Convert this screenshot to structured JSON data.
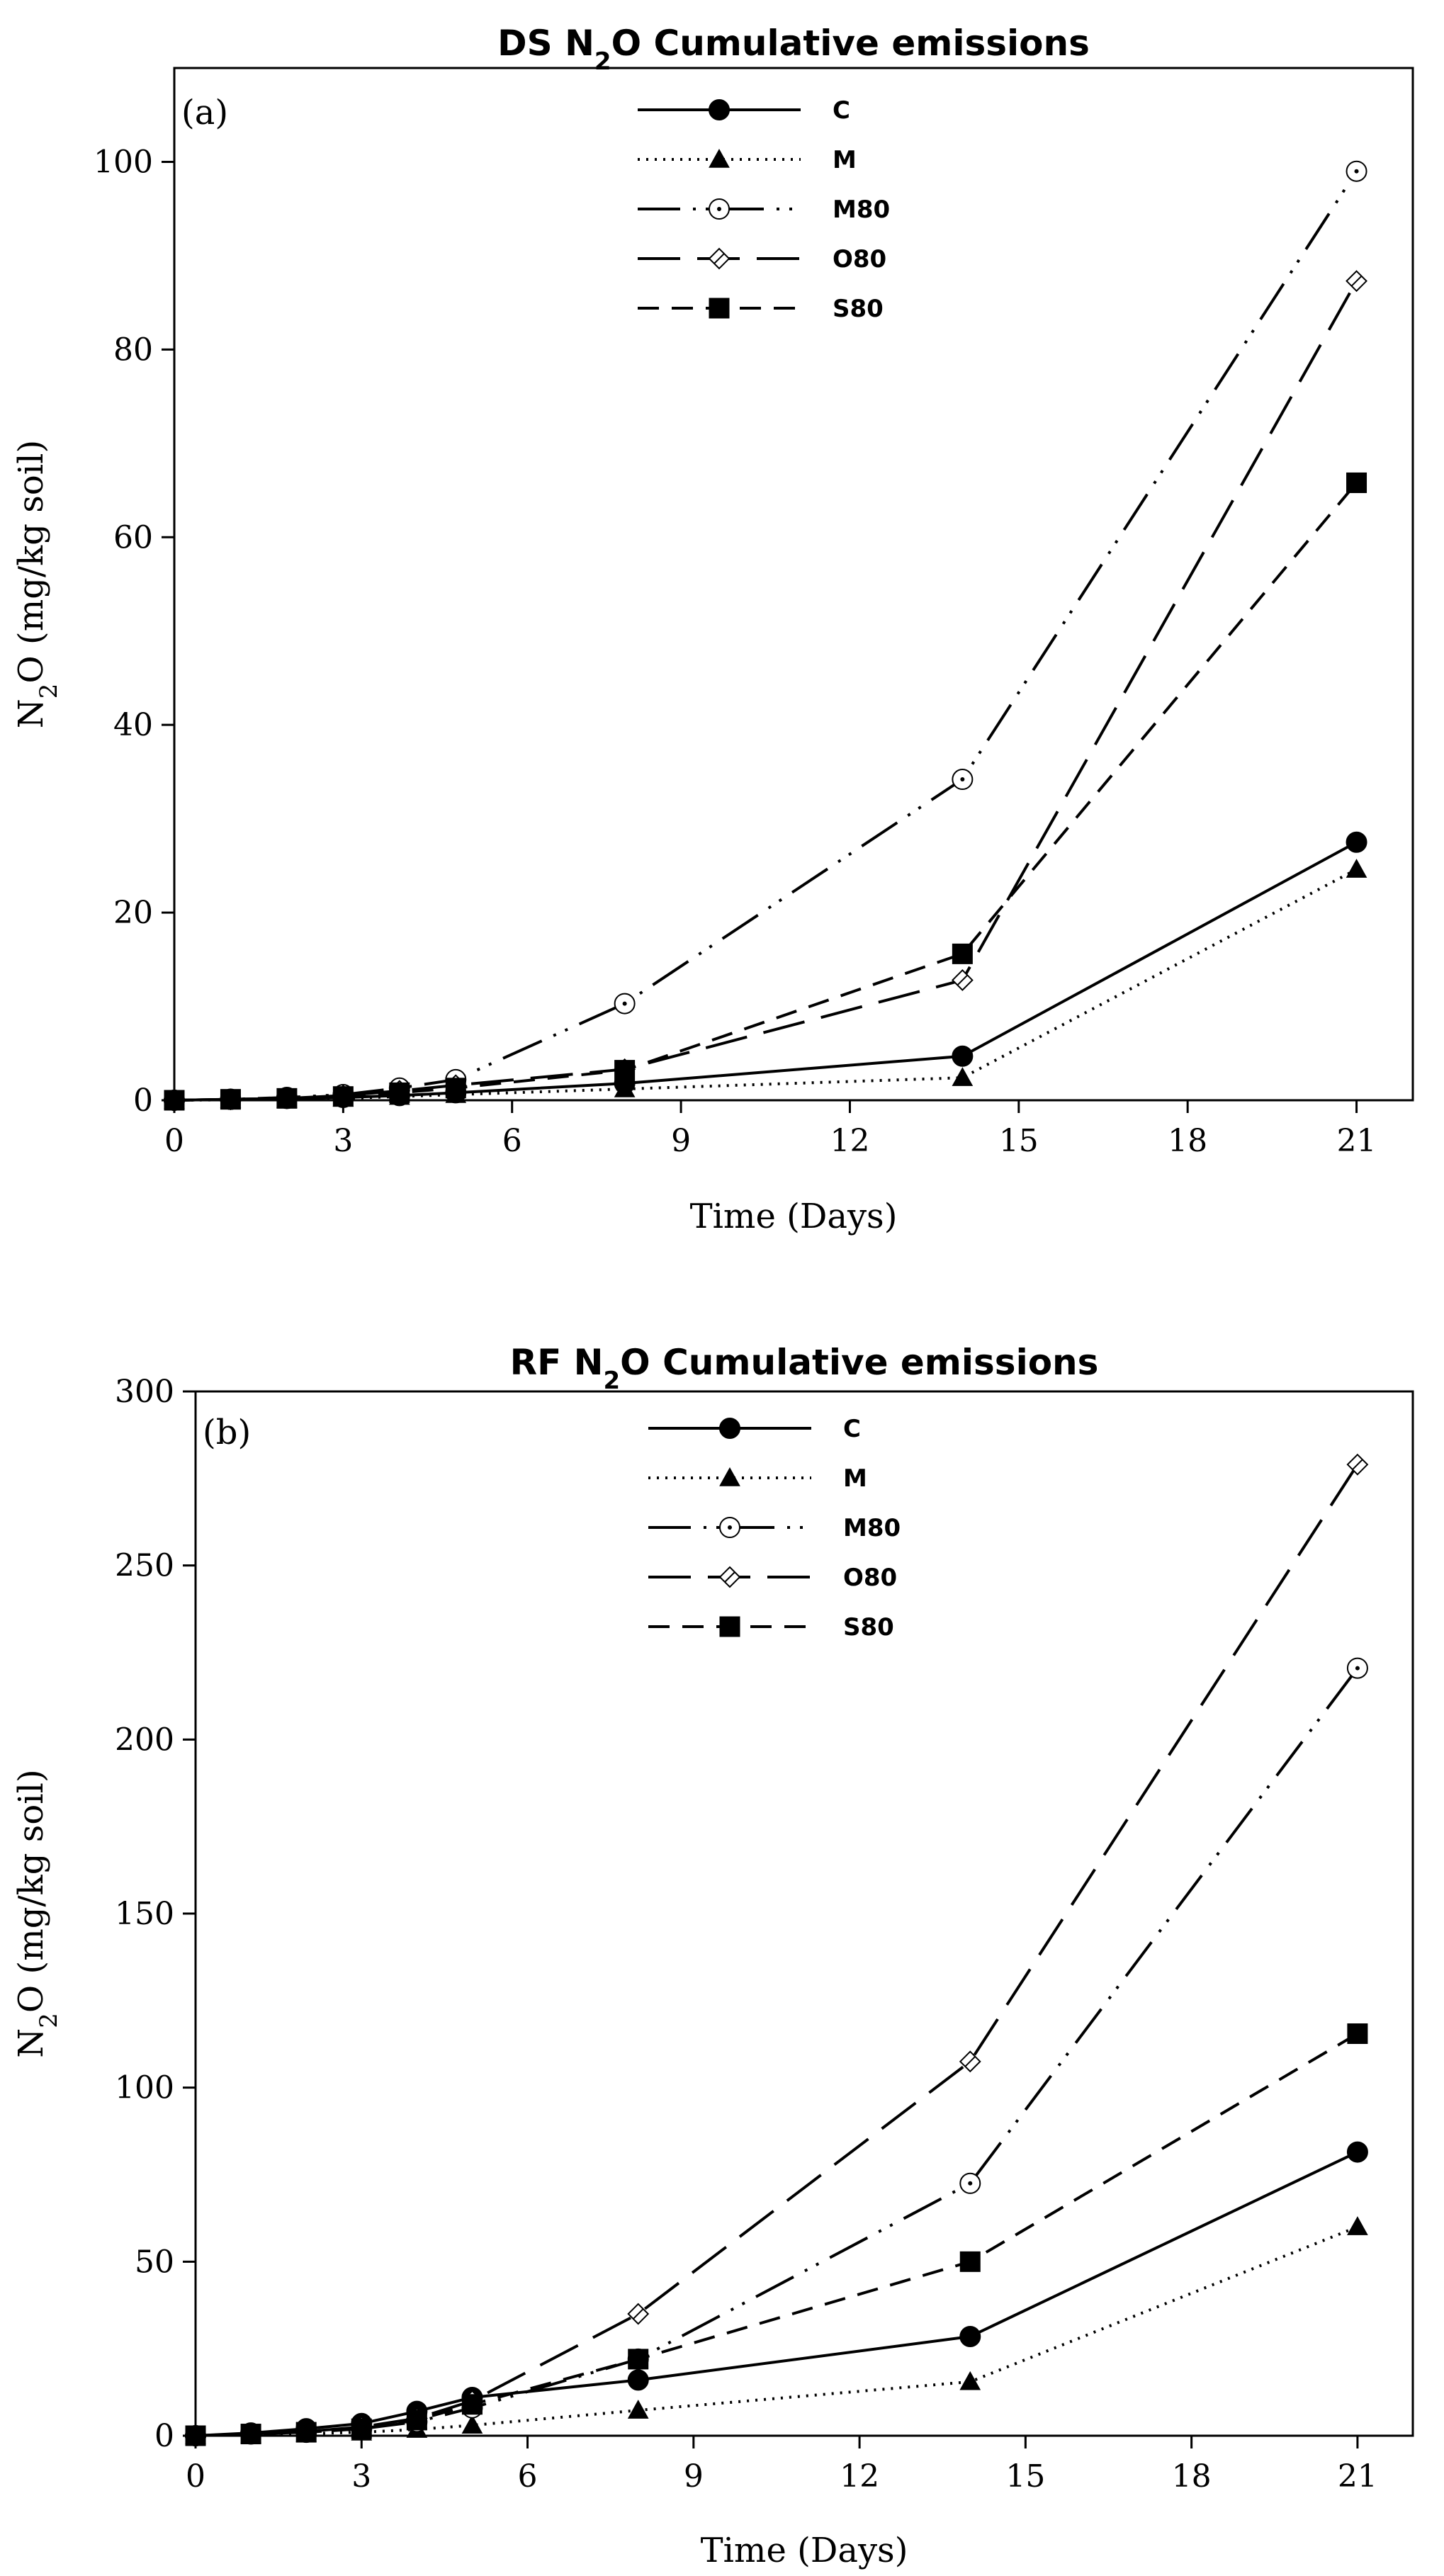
{
  "chart_data": [
    {
      "type": "line",
      "panel": "(a)",
      "title": "DS N2O Cumulative emissions",
      "title_parts": {
        "prefix": "DS N",
        "sub": "2",
        "suffix": "O Cumulative emissions"
      },
      "xlabel": "Time (Days)",
      "ylabel_parts": {
        "prefix": "N",
        "sub": "2",
        "suffix": "O (mg/kg soil)"
      },
      "xlim": [
        0,
        22
      ],
      "ylim": [
        0,
        110
      ],
      "xticks": [
        0,
        3,
        6,
        9,
        12,
        15,
        18,
        21
      ],
      "yticks": [
        0,
        20,
        40,
        60,
        80,
        100
      ],
      "grid": false,
      "legend_position": "top-center",
      "series": [
        {
          "name": "C",
          "x": [
            0,
            1,
            2,
            3,
            4,
            5,
            8,
            14,
            21
          ],
          "y": [
            0,
            0.1,
            0.2,
            0.3,
            0.5,
            0.8,
            1.8,
            4.7,
            27.5
          ]
        },
        {
          "name": "M",
          "x": [
            0,
            1,
            2,
            3,
            4,
            5,
            8,
            14,
            21
          ],
          "y": [
            0,
            0.05,
            0.1,
            0.2,
            0.4,
            0.6,
            1.2,
            2.4,
            24.6
          ]
        },
        {
          "name": "M80",
          "x": [
            0,
            1,
            2,
            3,
            4,
            5,
            8,
            14,
            21
          ],
          "y": [
            0,
            0.1,
            0.3,
            0.6,
            1.3,
            2.2,
            10.3,
            34.2,
            99.0
          ]
        },
        {
          "name": "O80",
          "x": [
            0,
            1,
            2,
            3,
            4,
            5,
            8,
            14,
            21
          ],
          "y": [
            0,
            0.1,
            0.2,
            0.5,
            1.0,
            1.6,
            3.3,
            12.8,
            87.3
          ]
        },
        {
          "name": "S80",
          "x": [
            0,
            1,
            2,
            3,
            4,
            5,
            8,
            14,
            21
          ],
          "y": [
            0,
            0.1,
            0.2,
            0.4,
            0.8,
            1.3,
            3.2,
            15.6,
            65.8
          ]
        }
      ]
    },
    {
      "type": "line",
      "panel": "(b)",
      "title": "RF N2O Cumulative emissions",
      "title_parts": {
        "prefix": "RF N",
        "sub": "2",
        "suffix": "O Cumulative emissions"
      },
      "xlabel": "Time (Days)",
      "ylabel_parts": {
        "prefix": "N",
        "sub": "2",
        "suffix": "O (mg/kg soil)"
      },
      "xlim": [
        0,
        22
      ],
      "ylim": [
        0,
        300
      ],
      "xticks": [
        0,
        3,
        6,
        9,
        12,
        15,
        18,
        21
      ],
      "yticks": [
        0,
        50,
        100,
        150,
        200,
        250,
        300
      ],
      "grid": false,
      "legend_position": "top-center",
      "series": [
        {
          "name": "C",
          "x": [
            0,
            1,
            2,
            3,
            4,
            5,
            8,
            14,
            21
          ],
          "y": [
            0,
            0.8,
            2.0,
            3.5,
            7.0,
            11.0,
            16.0,
            28.5,
            81.5
          ]
        },
        {
          "name": "M",
          "x": [
            0,
            1,
            2,
            3,
            4,
            5,
            8,
            14,
            21
          ],
          "y": [
            0,
            0.3,
            0.6,
            1.0,
            1.8,
            3.0,
            7.3,
            15.5,
            60.0
          ]
        },
        {
          "name": "M80",
          "x": [
            0,
            1,
            2,
            3,
            4,
            5,
            8,
            14,
            21
          ],
          "y": [
            0,
            0.5,
            1.0,
            2.0,
            4.0,
            8.0,
            22.0,
            72.5,
            220.5
          ]
        },
        {
          "name": "O80",
          "x": [
            0,
            1,
            2,
            3,
            4,
            5,
            8,
            14,
            21
          ],
          "y": [
            0,
            0.6,
            1.2,
            2.5,
            5.0,
            10.0,
            35.0,
            107.5,
            279.0
          ]
        },
        {
          "name": "S80",
          "x": [
            0,
            1,
            2,
            3,
            4,
            5,
            8,
            14,
            21
          ],
          "y": [
            0,
            0.5,
            1.0,
            2.0,
            4.5,
            9.0,
            22.0,
            50.0,
            115.5
          ]
        }
      ]
    }
  ],
  "series_style": {
    "C": {
      "dash": "none",
      "marker": "circle-filled"
    },
    "M": {
      "dash": "3 9",
      "marker": "triangle-filled"
    },
    "M80": {
      "dash": "60 18 4 14 4 18",
      "marker": "circle-open-dot"
    },
    "O80": {
      "dash": "60 24",
      "marker": "diamond-open"
    },
    "S80": {
      "dash": "30 18",
      "marker": "square-filled"
    }
  },
  "colors": {
    "line": "#000000",
    "background": "#ffffff"
  }
}
